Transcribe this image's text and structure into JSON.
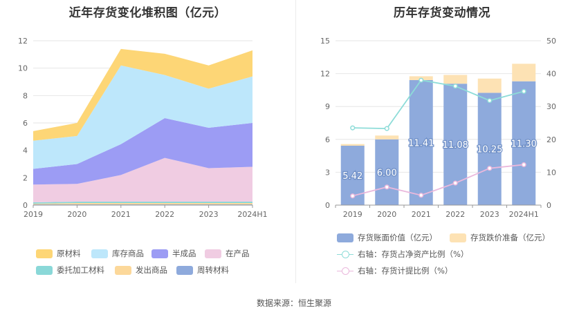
{
  "left_chart": {
    "title": "近年存货变化堆积图（亿元）",
    "chart_data": {
      "type": "area",
      "stacked": true,
      "x": [
        "2019",
        "2020",
        "2021",
        "2022",
        "2023",
        "2024H1"
      ],
      "ylim": [
        0,
        12
      ],
      "yticks": [
        0,
        2,
        4,
        6,
        8,
        10,
        12
      ],
      "series": [
        {
          "name": "周转材料",
          "color": "#8eaadc",
          "values": [
            0.05,
            0.05,
            0.05,
            0.05,
            0.05,
            0.05
          ]
        },
        {
          "name": "发出商品",
          "color": "#fcd89a",
          "values": [
            0.05,
            0.1,
            0.1,
            0.1,
            0.1,
            0.1
          ]
        },
        {
          "name": "委托加工材料",
          "color": "#8ad8d8",
          "values": [
            0.1,
            0.1,
            0.1,
            0.1,
            0.1,
            0.1
          ]
        },
        {
          "name": "在产品",
          "color": "#f0cce2",
          "values": [
            1.3,
            1.3,
            1.95,
            3.2,
            2.45,
            2.55
          ]
        },
        {
          "name": "半成品",
          "color": "#9c9cf4",
          "values": [
            1.15,
            1.45,
            2.25,
            2.9,
            2.95,
            3.2
          ]
        },
        {
          "name": "库存商品",
          "color": "#bde7fb",
          "values": [
            2.05,
            2.05,
            5.75,
            3.15,
            2.85,
            3.4
          ]
        },
        {
          "name": "原材料",
          "color": "#fdd676",
          "values": [
            0.7,
            0.95,
            1.2,
            1.55,
            1.7,
            1.9
          ]
        }
      ],
      "legend_order": [
        "原材料",
        "库存商品",
        "半成品",
        "在产品",
        "委托加工材料",
        "发出商品",
        "周转材料"
      ]
    }
  },
  "right_chart": {
    "title": "历年存货变动情况",
    "chart_data": {
      "type": "bar",
      "stacked": true,
      "categories": [
        "2019",
        "2020",
        "2021",
        "2022",
        "2023",
        "2024H1"
      ],
      "ylim_left": [
        0,
        15
      ],
      "yticks_left": [
        0,
        3,
        6,
        9,
        12,
        15
      ],
      "ylim_right": [
        0,
        50
      ],
      "yticks_right": [
        0,
        10,
        20,
        30,
        40,
        50
      ],
      "series": [
        {
          "name": "存货账面价值（亿元）",
          "axis": "left",
          "kind": "bar",
          "color": "#8eaadc",
          "values": [
            5.42,
            6.0,
            11.41,
            11.08,
            10.25,
            11.3
          ],
          "labels": [
            "5.42",
            "6.00",
            "11.41",
            "11.08",
            "10.25",
            "11.30"
          ]
        },
        {
          "name": "存货跌价准备（亿元）",
          "axis": "left",
          "kind": "bar",
          "color": "#fde2b4",
          "values": [
            0.15,
            0.35,
            0.35,
            0.8,
            1.3,
            1.6
          ]
        },
        {
          "name": "右轴：存货占净资产比例（%）",
          "axis": "right",
          "kind": "line",
          "color": "#8ddcd8",
          "values": [
            23.5,
            23.3,
            38.0,
            36.2,
            31.8,
            34.6
          ]
        },
        {
          "name": "右轴：存货计提比例（%）",
          "axis": "right",
          "kind": "line",
          "color": "#eab8dc",
          "values": [
            2.8,
            5.5,
            3.0,
            6.7,
            11.2,
            12.3
          ]
        }
      ]
    }
  },
  "source_text": "数据来源：恒生聚源"
}
